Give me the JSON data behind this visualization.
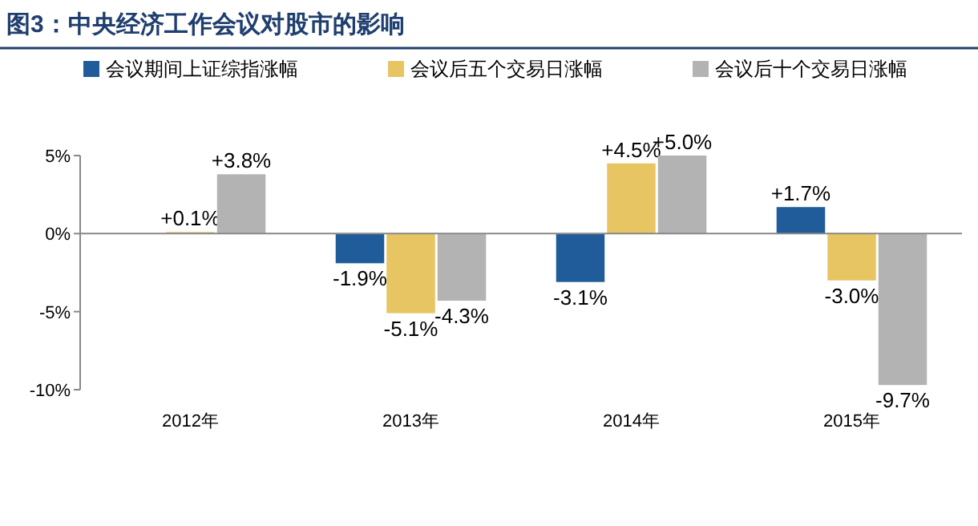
{
  "chart_data": {
    "type": "bar",
    "title": "图3：中央经济工作会议对股市的影响",
    "categories": [
      "2012年",
      "2013年",
      "2014年",
      "2015年"
    ],
    "series": [
      {
        "name": "会议期间上证综指涨幅",
        "color": "#1f5c99",
        "values": [
          null,
          -1.9,
          -3.1,
          1.7
        ],
        "value_labels": [
          null,
          "-1.9%",
          "-3.1%",
          "+1.7%"
        ]
      },
      {
        "name": "会议后五个交易日涨幅",
        "color": "#e8c563",
        "values": [
          0.1,
          -5.1,
          4.5,
          -3.0
        ],
        "value_labels": [
          "+0.1%",
          "-5.1%",
          "+4.5%",
          "-3.0%"
        ]
      },
      {
        "name": "会议后十个交易日涨幅",
        "color": "#b3b3b3",
        "values": [
          3.8,
          -4.3,
          5.0,
          -9.7
        ],
        "value_labels": [
          "+3.8%",
          "-4.3%",
          "+5.0%",
          "-9.7%"
        ]
      }
    ],
    "ylim": [
      -10,
      5
    ],
    "yticks": [
      {
        "value": 5,
        "label": "5%"
      },
      {
        "value": 0,
        "label": "0%"
      },
      {
        "value": -5,
        "label": "-5%"
      },
      {
        "value": -10,
        "label": "-10%"
      }
    ],
    "legend": "top"
  }
}
